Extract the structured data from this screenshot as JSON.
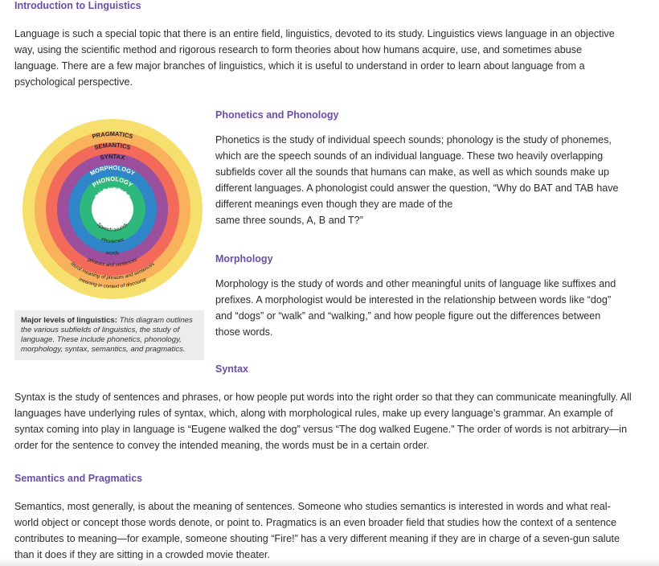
{
  "intro": {
    "title": "Introduction to Linguistics",
    "text": "Language is such a special topic that there is an entire field, linguistics, devoted to its study. Linguistics views language in an objective way, using the scientific method and rigorous research to form theories about how humans acquire, use, and sometimes abuse language. There are a few major branches of linguistics, which it is useful to understand in order to learn about language from a psychological perspective."
  },
  "figure": {
    "levels": [
      {
        "outer": "PRAGMATICS",
        "inner": "meaning in context of discourse",
        "color": "#f7df6e"
      },
      {
        "outer": "SEMANTICS",
        "inner": "literal meaning of phrases and sentences",
        "color": "#f9b15c"
      },
      {
        "outer": "SYNTAX",
        "inner": "phrases and sentences",
        "color": "#f46a5a"
      },
      {
        "outer": "MORPHOLOGY",
        "inner": "words",
        "color": "#9b4f9c"
      },
      {
        "outer": "PHONOLOGY",
        "inner": "Phonemes",
        "color": "#2f86c8"
      },
      {
        "outer": "PHONETICS",
        "inner": "Speech sounds",
        "color": "#2fb87b"
      }
    ],
    "caption_title": "Major levels of linguistics:",
    "caption_text": "This diagram outlines the various subfields of linguistics, the study of language. These include phonetics, phonology, morphology, syntax, semantics, and pragmatics."
  },
  "phonetics": {
    "heading": "Phonetics and Phonology",
    "text_main": "Phonetics is the study of individual speech sounds; phonology is the study of phonemes, which are the speech sounds of an individual language. These two heavily overlapping subfields cover all the sounds that humans can make, as well as which sounds make up different languages. A phonologist could answer the question, “Why do BAT and TAB have different meanings even though they are made of the",
    "text_tail": "same three sounds, A, B and T?”"
  },
  "morphology": {
    "heading": "Morphology",
    "text": "Morphology is the study of words and other meaningful units of language like suffixes and prefixes. A morphologist would be interested in the relationship between words like “dog” and “dogs” or “walk” and “walking,” and how people figure out the differences between those words."
  },
  "syntax": {
    "heading": "Syntax",
    "text": "Syntax is the study of sentences and phrases, or how people put words into the right order so that they can communicate meaningfully. All languages have underlying rules of syntax, which, along with morphological rules, make up every language’s grammar. An example of syntax coming into play in language is “Eugene walked the dog” versus “The dog walked Eugene.” The order of words is not arbitrary—in order for the sentence to convey the intended meaning, the words must be in a certain order."
  },
  "semantics": {
    "heading": "Semantics and Pragmatics",
    "text": "Semantics, most generally, is about the meaning of sentences. Someone who studies semantics is interested in words and what real-world object or concept those words denote, or point to. Pragmatics is an even broader field that studies how the context of a sentence contributes to meaning—for example, someone shouting “Fire!” has a very different meaning if they are in charge of a seven-gun salute than it does if they are sitting in a crowded movie theater."
  }
}
